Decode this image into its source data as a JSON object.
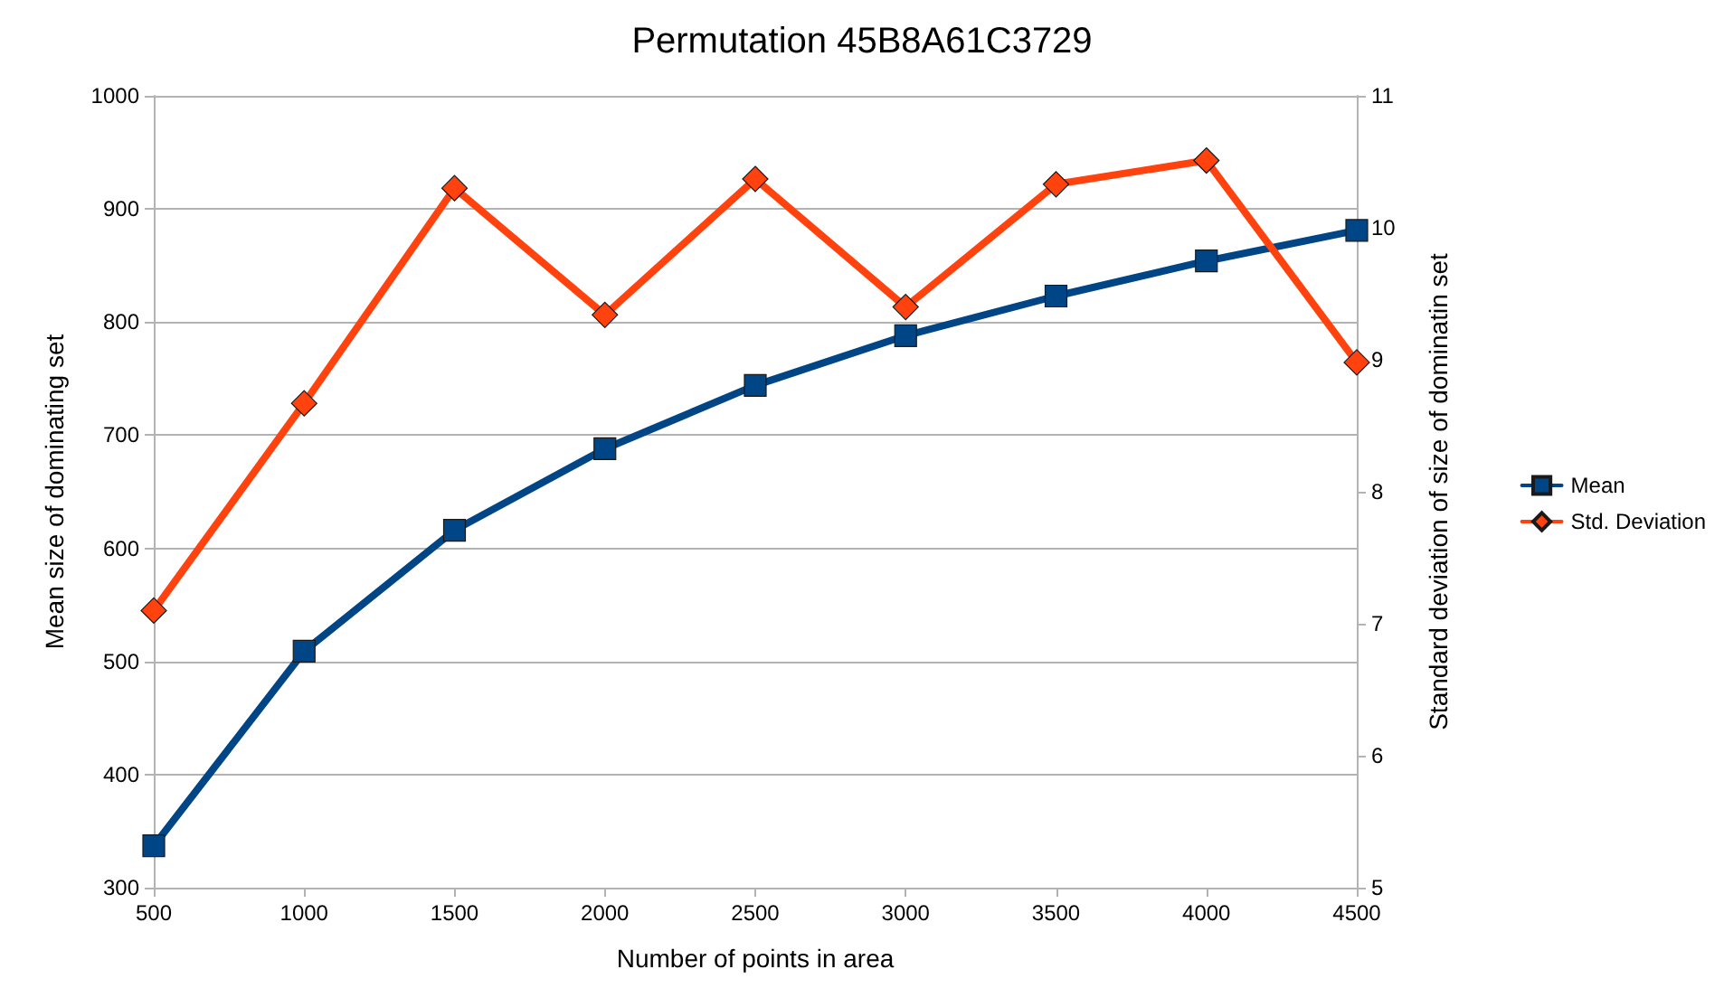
{
  "chart_data": {
    "type": "line",
    "title": "Permutation 45B8A61C3729",
    "xlabel": "Number of points in area",
    "ylabel": "Mean size of dominating set",
    "y2label": "Standard deviation of size of dominatin set",
    "x": [
      500,
      1000,
      1500,
      2000,
      2500,
      3000,
      3500,
      4000,
      4500
    ],
    "series": [
      {
        "name": "Mean",
        "color": "#004586",
        "marker": "square",
        "values": [
          337,
          509,
          616,
          688,
          744,
          788,
          823,
          854,
          881
        ]
      },
      {
        "name": "Std. Deviation",
        "color": "#ff420e",
        "marker": "diamond",
        "axis": "y2",
        "values": [
          7.1,
          8.67,
          10.3,
          9.34,
          10.37,
          9.4,
          10.33,
          10.51,
          8.98
        ]
      }
    ],
    "xlim": [
      500,
      4500
    ],
    "xticks": [
      500,
      1000,
      1500,
      2000,
      2500,
      3000,
      3500,
      4000,
      4500
    ],
    "ylim": [
      300,
      1000
    ],
    "yticks": [
      300,
      400,
      500,
      600,
      700,
      800,
      900,
      1000
    ],
    "y2lim": [
      5,
      11
    ],
    "y2ticks": [
      5,
      6,
      7,
      8,
      9,
      10,
      11
    ],
    "grid": "y",
    "legend": "right",
    "line_style": "solid"
  }
}
